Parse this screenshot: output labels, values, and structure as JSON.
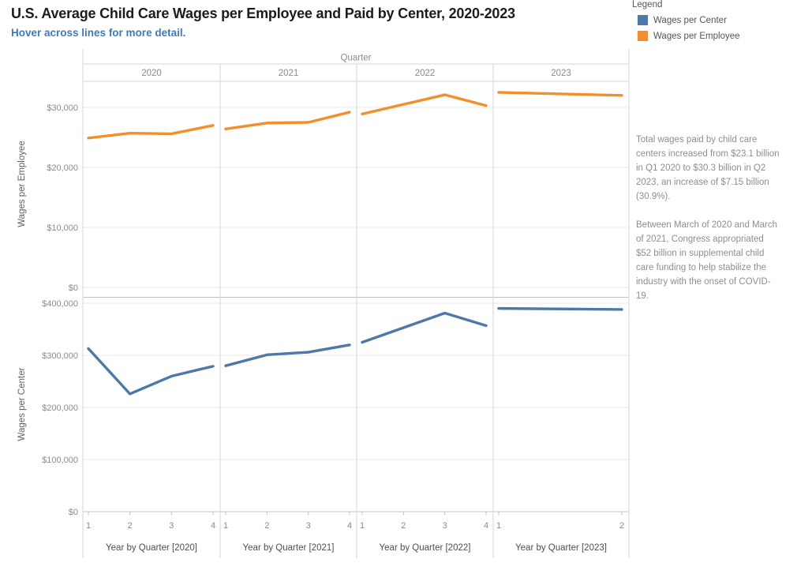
{
  "header": {
    "title": "U.S. Average Child Care Wages per Employee and Paid by Center, 2020-2023",
    "subtitle": "Hover across lines for more detail."
  },
  "legend": {
    "title": "Legend",
    "items": [
      {
        "label": "Wages per Center",
        "color": "#4e79a7"
      },
      {
        "label": "Wages per Employee",
        "color": "#f28e2b"
      }
    ]
  },
  "annotation": {
    "paragraphs": [
      "Total wages paid by child care centers increased from $23.1 billion in Q1 2020 to $30.3 billion in Q2 2023, an increase of $7.15 billion (30.9%).",
      "Between March of 2020 and March of 2021, Congress appropriated $52 billion in supplemental child care funding to help stabilize the industry with the onset of COVID-19."
    ]
  },
  "chart_data": [
    {
      "type": "line",
      "column_header": "Quarter",
      "ylabel": "Wages per Employee",
      "series_name": "Wages per Employee",
      "color": "#f28e2b",
      "ylim": [
        0,
        34300
      ],
      "grid": true,
      "yticks": [
        {
          "value": 0,
          "label": "$0"
        },
        {
          "value": 10000,
          "label": "$10,000"
        },
        {
          "value": 20000,
          "label": "$20,000"
        },
        {
          "value": 30000,
          "label": "$30,000"
        }
      ],
      "panels": [
        {
          "year": "2020",
          "axis_title": "Year by Quarter [2020]",
          "quarters": [
            "1",
            "2",
            "3",
            "4"
          ],
          "values": [
            24900,
            25700,
            25600,
            27000
          ]
        },
        {
          "year": "2021",
          "axis_title": "Year by Quarter [2021]",
          "quarters": [
            "1",
            "2",
            "3",
            "4"
          ],
          "values": [
            26400,
            27400,
            27500,
            29200
          ]
        },
        {
          "year": "2022",
          "axis_title": "Year by Quarter [2022]",
          "quarters": [
            "1",
            "2",
            "3",
            "4"
          ],
          "values": [
            28900,
            30500,
            32100,
            30300
          ]
        },
        {
          "year": "2023",
          "axis_title": "Year by Quarter [2023]",
          "quarters": [
            "1",
            "2"
          ],
          "values": [
            32500,
            32000
          ]
        }
      ]
    },
    {
      "type": "line",
      "ylabel": "Wages per Center",
      "series_name": "Wages per Center",
      "color": "#4e79a7",
      "ylim": [
        0,
        410000
      ],
      "grid": true,
      "yticks": [
        {
          "value": 0,
          "label": "$0"
        },
        {
          "value": 100000,
          "label": "$100,000"
        },
        {
          "value": 200000,
          "label": "$200,000"
        },
        {
          "value": 300000,
          "label": "$300,000"
        },
        {
          "value": 400000,
          "label": "$400,000"
        }
      ],
      "panels": [
        {
          "year": "2020",
          "quarters": [
            "1",
            "2",
            "3",
            "4"
          ],
          "values": [
            313000,
            226000,
            260000,
            279000
          ]
        },
        {
          "year": "2021",
          "quarters": [
            "1",
            "2",
            "3",
            "4"
          ],
          "values": [
            280000,
            301000,
            306000,
            320000
          ]
        },
        {
          "year": "2022",
          "quarters": [
            "1",
            "2",
            "3",
            "4"
          ],
          "values": [
            325000,
            353000,
            381000,
            357000
          ]
        },
        {
          "year": "2023",
          "quarters": [
            "1",
            "2"
          ],
          "values": [
            390000,
            388000
          ]
        }
      ]
    }
  ]
}
